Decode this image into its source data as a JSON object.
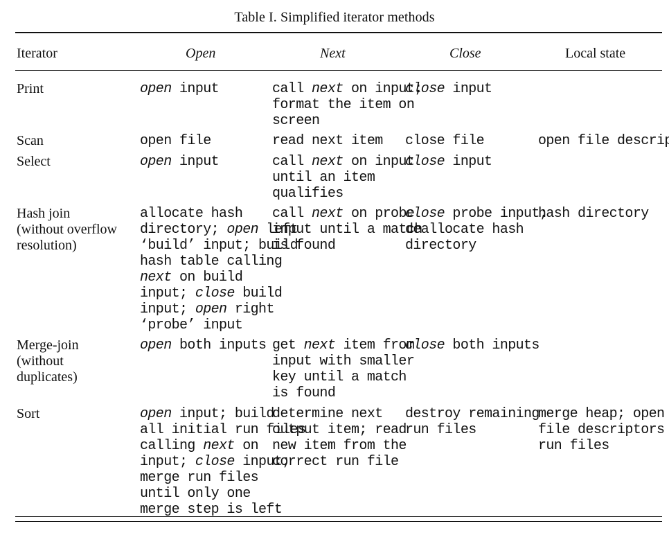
{
  "caption": "Table I. Simplified iterator methods",
  "headers": {
    "iterator": "Iterator",
    "open": "Open",
    "next": "Next",
    "close": "Close",
    "local_state": "Local state"
  },
  "rows": [
    {
      "iterator": [
        "Print"
      ],
      "open": [
        [
          [
            "open",
            "i"
          ],
          [
            " input",
            ""
          ]
        ]
      ],
      "next": [
        [
          [
            "call ",
            ""
          ],
          [
            "next",
            "i"
          ],
          [
            " on input;",
            ""
          ]
        ],
        [
          [
            "format the item on",
            ""
          ]
        ],
        [
          [
            "screen",
            ""
          ]
        ]
      ],
      "close": [
        [
          [
            "close",
            "i"
          ],
          [
            " input",
            ""
          ]
        ]
      ],
      "local_state": []
    },
    {
      "iterator": [
        "Scan"
      ],
      "open": [
        [
          [
            "open file",
            ""
          ]
        ]
      ],
      "next": [
        [
          [
            "read next item",
            ""
          ]
        ]
      ],
      "close": [
        [
          [
            "close file",
            ""
          ]
        ]
      ],
      "local_state": [
        [
          [
            "open file descriptor",
            ""
          ]
        ]
      ]
    },
    {
      "iterator": [
        "Select"
      ],
      "open": [
        [
          [
            "open",
            "i"
          ],
          [
            " input",
            ""
          ]
        ]
      ],
      "next": [
        [
          [
            "call ",
            ""
          ],
          [
            "next",
            "i"
          ],
          [
            " on input",
            ""
          ]
        ],
        [
          [
            "until an item",
            ""
          ]
        ],
        [
          [
            "qualifies",
            ""
          ]
        ]
      ],
      "close": [
        [
          [
            "close",
            "i"
          ],
          [
            " input",
            ""
          ]
        ]
      ],
      "local_state": []
    },
    {
      "iterator": [
        "Hash join",
        "(without overflow",
        "resolution)"
      ],
      "open": [
        [
          [
            "allocate hash",
            ""
          ]
        ],
        [
          [
            "directory; ",
            ""
          ],
          [
            "open",
            "i"
          ],
          [
            " left",
            ""
          ]
        ],
        [
          [
            "‘build’ input; build",
            ""
          ]
        ],
        [
          [
            "hash table calling",
            ""
          ]
        ],
        [
          [
            "next",
            "i"
          ],
          [
            " on build",
            ""
          ]
        ],
        [
          [
            "input; ",
            ""
          ],
          [
            "close",
            "i"
          ],
          [
            " build",
            ""
          ]
        ],
        [
          [
            "input; ",
            ""
          ],
          [
            "open",
            "i"
          ],
          [
            " right",
            ""
          ]
        ],
        [
          [
            "‘probe’ input",
            ""
          ]
        ]
      ],
      "next": [
        [
          [
            "call ",
            ""
          ],
          [
            "next",
            "i"
          ],
          [
            " on probe",
            ""
          ]
        ],
        [
          [
            "input until a match",
            ""
          ]
        ],
        [
          [
            "is found",
            ""
          ]
        ]
      ],
      "close": [
        [
          [
            "close",
            "i"
          ],
          [
            " probe input;",
            ""
          ]
        ],
        [
          [
            "deallocate hash",
            ""
          ]
        ],
        [
          [
            "directory",
            ""
          ]
        ]
      ],
      "local_state": [
        [
          [
            "hash directory",
            ""
          ]
        ]
      ]
    },
    {
      "iterator": [
        "Merge-join",
        "(without",
        "duplicates)"
      ],
      "open": [
        [
          [
            "open",
            "i"
          ],
          [
            " both inputs",
            ""
          ]
        ]
      ],
      "next": [
        [
          [
            "get ",
            ""
          ],
          [
            "next",
            "i"
          ],
          [
            " item from",
            ""
          ]
        ],
        [
          [
            "input with smaller",
            ""
          ]
        ],
        [
          [
            "key until a match",
            ""
          ]
        ],
        [
          [
            "is found",
            ""
          ]
        ]
      ],
      "close": [
        [
          [
            "close",
            "i"
          ],
          [
            " both inputs",
            ""
          ]
        ]
      ],
      "local_state": []
    },
    {
      "iterator": [
        "Sort"
      ],
      "open": [
        [
          [
            "open",
            "i"
          ],
          [
            " input; build",
            ""
          ]
        ],
        [
          [
            "all initial run files",
            ""
          ]
        ],
        [
          [
            "calling ",
            ""
          ],
          [
            "next",
            "i"
          ],
          [
            " on",
            ""
          ]
        ],
        [
          [
            "input; ",
            ""
          ],
          [
            "close",
            "i"
          ],
          [
            " input;",
            ""
          ]
        ],
        [
          [
            "merge run files",
            ""
          ]
        ],
        [
          [
            "until only one",
            ""
          ]
        ],
        [
          [
            "merge step is left",
            ""
          ]
        ]
      ],
      "next": [
        [
          [
            "determine next",
            ""
          ]
        ],
        [
          [
            "output item; read",
            ""
          ]
        ],
        [
          [
            "new item from the",
            ""
          ]
        ],
        [
          [
            "correct run file",
            ""
          ]
        ]
      ],
      "close": [
        [
          [
            "destroy remaining",
            ""
          ]
        ],
        [
          [
            "run files",
            ""
          ]
        ]
      ],
      "local_state": [
        [
          [
            "merge heap; open",
            ""
          ]
        ],
        [
          [
            "file descriptors for",
            ""
          ]
        ],
        [
          [
            "run files",
            ""
          ]
        ]
      ]
    }
  ]
}
